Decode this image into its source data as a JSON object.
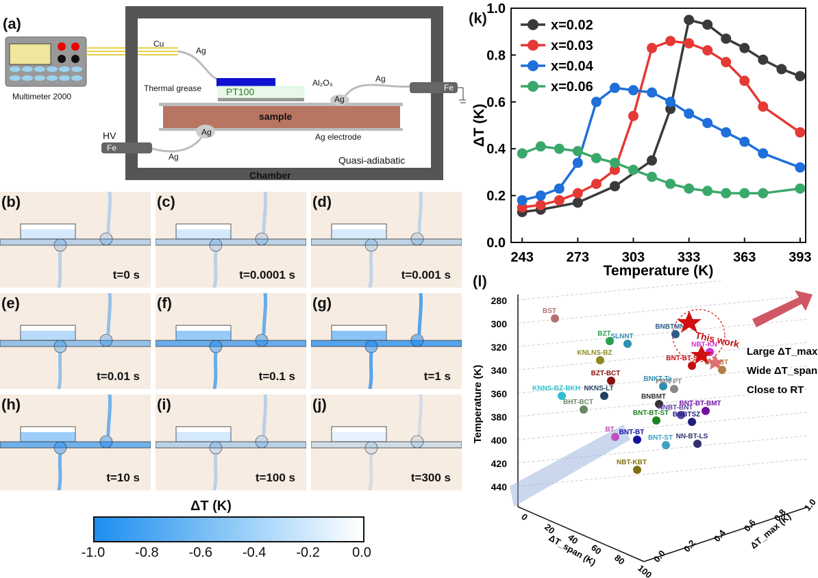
{
  "setup": {
    "label": "(a)",
    "multimeter": "Multimeter 2000",
    "cu": "Cu",
    "ag": "Ag",
    "pt100": "PT100",
    "al2o3": "Al₂O₃",
    "thermal_grease": "Thermal grease",
    "sample": "sample",
    "ag_electrode": "Ag electrode",
    "hv": "HV",
    "fe": "Fe",
    "chamber": "Chamber",
    "quasi": "Quasi-adiabatic",
    "colors": {
      "chamber": "#555555",
      "sample": "#b87561",
      "pt100": "#1010d0"
    }
  },
  "sim_panels": [
    {
      "label": "(b)",
      "time": "t=0 s",
      "blue": 0.15
    },
    {
      "label": "(c)",
      "time": "t=0.0001 s",
      "blue": 0.15
    },
    {
      "label": "(d)",
      "time": "t=0.001 s",
      "blue": 0.12
    },
    {
      "label": "(e)",
      "time": "t=0.01 s",
      "blue": 0.35
    },
    {
      "label": "(f)",
      "time": "t=0.1 s",
      "blue": 0.6
    },
    {
      "label": "(g)",
      "time": "t=1 s",
      "blue": 0.7
    },
    {
      "label": "(h)",
      "time": "t=10 s",
      "blue": 0.55
    },
    {
      "label": "(i)",
      "time": "t=100 s",
      "blue": 0.15
    },
    {
      "label": "(j)",
      "time": "t=300 s",
      "blue": 0.02
    }
  ],
  "colorbar": {
    "title": "ΔT (K)",
    "ticks": [
      "-1.0",
      "-0.8",
      "-0.6",
      "-0.4",
      "-0.2",
      "0.0"
    ]
  },
  "chart_data": [
    {
      "type": "line",
      "panel": "(k)",
      "xlabel": "Temperature (K)",
      "ylabel": "ΔT (K)",
      "xlim": [
        237,
        396
      ],
      "ylim": [
        0.0,
        1.0
      ],
      "xticks": [
        "243",
        "273",
        "303",
        "333",
        "363",
        "393"
      ],
      "yticks": [
        "0.0",
        "0.2",
        "0.4",
        "0.6",
        "0.8",
        "1.0"
      ],
      "legend_position": "top-left",
      "series": [
        {
          "name": "x=0.02",
          "color": "#3a3a3a",
          "x": [
            243,
            253,
            273,
            293,
            313,
            323,
            333,
            343,
            353,
            363,
            373,
            383,
            393
          ],
          "y": [
            0.13,
            0.14,
            0.17,
            0.24,
            0.35,
            0.57,
            0.95,
            0.93,
            0.87,
            0.83,
            0.78,
            0.74,
            0.71
          ]
        },
        {
          "name": "x=0.03",
          "color": "#e53935",
          "x": [
            243,
            253,
            263,
            273,
            283,
            293,
            303,
            313,
            323,
            333,
            343,
            353,
            363,
            373,
            393
          ],
          "y": [
            0.15,
            0.16,
            0.18,
            0.21,
            0.25,
            0.31,
            0.54,
            0.83,
            0.86,
            0.85,
            0.82,
            0.77,
            0.69,
            0.58,
            0.47
          ]
        },
        {
          "name": "x=0.04",
          "color": "#1e6fd9",
          "x": [
            243,
            253,
            263,
            273,
            283,
            293,
            303,
            313,
            323,
            333,
            343,
            353,
            363,
            373,
            393
          ],
          "y": [
            0.18,
            0.2,
            0.23,
            0.34,
            0.6,
            0.66,
            0.65,
            0.64,
            0.6,
            0.55,
            0.51,
            0.47,
            0.43,
            0.38,
            0.32
          ]
        },
        {
          "name": "x=0.06",
          "color": "#3aa86b",
          "x": [
            243,
            253,
            263,
            273,
            283,
            293,
            303,
            313,
            323,
            333,
            343,
            353,
            363,
            373,
            393
          ],
          "y": [
            0.38,
            0.41,
            0.4,
            0.39,
            0.36,
            0.34,
            0.31,
            0.28,
            0.25,
            0.23,
            0.22,
            0.21,
            0.21,
            0.21,
            0.23
          ]
        }
      ]
    },
    {
      "type": "scatter",
      "panel": "(l)",
      "zlabel": "Temperature (K)",
      "xlabel": "ΔT_span (K)",
      "ylabel": "ΔT_max (K)",
      "zticks": [
        "280",
        "300",
        "320",
        "340",
        "360",
        "380",
        "400",
        "420",
        "440"
      ],
      "xticks": [
        "0",
        "20",
        "40",
        "60",
        "80",
        "100"
      ],
      "yticks": [
        "0.0",
        "0.2",
        "0.4",
        "0.6",
        "0.8",
        "1.0"
      ],
      "labels": [
        "BST",
        "BZT",
        "SLNNT",
        "BNBTMN",
        "NBT-KN",
        "BNT-BT-SBT",
        "KNLNS-BZ",
        "BZT-BCT",
        "BNKT-Ta",
        "BNSBT",
        "PMN-PT",
        "KNNS-BZ-BKH",
        "NKNS-LT",
        "BNBMT",
        "BNT-BT-BMT",
        "BHT-BCT",
        "NNBT-BNT",
        "BNT-BT-ST",
        "BNBTSZ",
        "BT",
        "BNT-BT",
        "NN-BT-LS",
        "BNT-ST",
        "NBT-KBT"
      ],
      "this_work": "This work",
      "arrow_notes": [
        "Large ΔT_max",
        "Wide ΔT_span",
        "Close to RT"
      ]
    }
  ]
}
